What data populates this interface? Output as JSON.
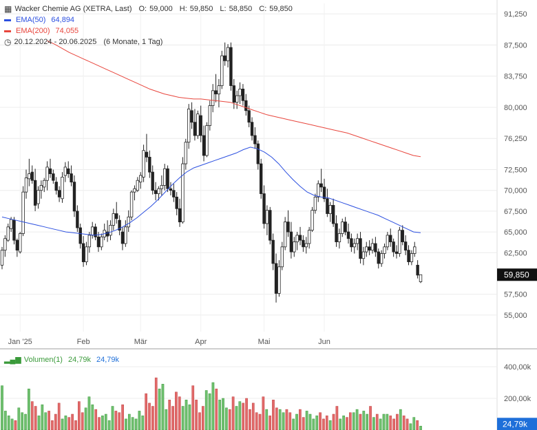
{
  "header": {
    "title": "Wacker Chemie AG (XETRA, Last)",
    "ohlc": {
      "o_label": "O:",
      "o": "59,000",
      "h_label": "H:",
      "h": "59,850",
      "l_label": "L:",
      "l": "58,850",
      "c_label": "C:",
      "c": "59,850"
    },
    "ema50_label": "EMA(50)",
    "ema50_value": "64,894",
    "ema200_label": "EMA(200)",
    "ema200_value": "74,055",
    "range": "20.12.2024 - 20.06.2025",
    "period": "(6 Monate, 1 Tag)",
    "volume_label": "Volumen(1)",
    "volume_value_1": "24,79k",
    "volume_value_2": "24,79k"
  },
  "colors": {
    "ema50": "#2b4fe0",
    "ema200": "#e8453c",
    "up": "#6fc06f",
    "down": "#e26a6a",
    "candle": "#222222",
    "price_tag": "#111111",
    "volume_tag": "#1e6fd9",
    "volume_legend": "#3a9a3a"
  },
  "chart_data": {
    "type": "candlestick",
    "y_ticks": [
      "91,250",
      "87,500",
      "83,750",
      "80,000",
      "76,250",
      "72,500",
      "70,000",
      "67,500",
      "65,000",
      "62,500",
      "57,500",
      "55,000"
    ],
    "x_ticks": [
      "Jan '25",
      "Feb",
      "Mär",
      "Apr",
      "Mai",
      "Jun"
    ],
    "last_price": "59,850",
    "volume_ticks": [
      "400,00k",
      "200,00k"
    ],
    "volume_last": "24,79k",
    "ylim": [
      53.0,
      92.5
    ],
    "candles": [
      [
        61.0,
        63.2,
        60.5,
        62.8
      ],
      [
        62.8,
        64.6,
        62.0,
        64.2
      ],
      [
        64.0,
        66.0,
        63.8,
        65.6
      ],
      [
        65.4,
        66.8,
        65.0,
        66.5
      ],
      [
        66.4,
        66.8,
        63.5,
        64.0
      ],
      [
        64.0,
        64.2,
        62.0,
        62.8
      ],
      [
        62.6,
        65.0,
        62.4,
        64.8
      ],
      [
        64.8,
        70.5,
        64.5,
        69.8
      ],
      [
        69.8,
        72.5,
        69.0,
        71.5
      ],
      [
        71.4,
        73.8,
        70.5,
        72.0
      ],
      [
        72.2,
        73.0,
        70.8,
        71.2
      ],
      [
        71.2,
        72.6,
        67.5,
        68.2
      ],
      [
        68.4,
        70.5,
        67.8,
        70.0
      ],
      [
        70.0,
        71.2,
        69.0,
        70.6
      ],
      [
        70.4,
        71.5,
        69.8,
        71.2
      ],
      [
        71.2,
        73.5,
        70.0,
        72.8
      ],
      [
        72.6,
        73.8,
        71.5,
        72.0
      ],
      [
        72.0,
        72.5,
        70.8,
        71.2
      ],
      [
        71.0,
        71.6,
        69.5,
        70.0
      ],
      [
        70.0,
        70.5,
        68.6,
        69.2
      ],
      [
        69.0,
        72.2,
        68.5,
        71.6
      ],
      [
        71.8,
        73.4,
        71.0,
        72.8
      ],
      [
        72.6,
        73.5,
        71.5,
        72.0
      ],
      [
        72.0,
        73.0,
        70.5,
        71.0
      ],
      [
        71.0,
        71.8,
        66.8,
        67.5
      ],
      [
        67.5,
        68.2,
        65.0,
        65.5
      ],
      [
        65.5,
        66.0,
        63.0,
        63.6
      ],
      [
        63.6,
        64.5,
        60.8,
        61.4
      ],
      [
        61.4,
        63.8,
        61.0,
        63.2
      ],
      [
        63.2,
        65.0,
        62.5,
        64.6
      ],
      [
        64.6,
        66.2,
        64.2,
        65.6
      ],
      [
        65.6,
        66.0,
        64.0,
        64.4
      ],
      [
        64.4,
        65.0,
        62.6,
        63.2
      ],
      [
        63.2,
        64.8,
        62.8,
        64.4
      ],
      [
        64.4,
        66.0,
        64.0,
        65.2
      ],
      [
        65.0,
        66.4,
        63.8,
        64.5
      ],
      [
        64.6,
        66.4,
        64.0,
        65.8
      ],
      [
        65.8,
        67.8,
        65.2,
        67.2
      ],
      [
        67.2,
        68.6,
        66.0,
        66.6
      ],
      [
        66.4,
        67.0,
        64.6,
        65.2
      ],
      [
        65.0,
        65.6,
        62.8,
        63.6
      ],
      [
        63.6,
        66.4,
        63.2,
        65.6
      ],
      [
        65.6,
        67.6,
        65.0,
        66.8
      ],
      [
        66.8,
        70.0,
        66.4,
        69.8
      ],
      [
        69.8,
        70.6,
        68.8,
        70.2
      ],
      [
        70.0,
        71.6,
        69.8,
        71.2
      ],
      [
        71.0,
        72.2,
        70.2,
        71.8
      ],
      [
        71.6,
        75.5,
        71.0,
        74.8
      ],
      [
        74.6,
        76.8,
        73.4,
        74.0
      ],
      [
        74.0,
        74.8,
        71.5,
        72.2
      ],
      [
        72.2,
        73.0,
        69.5,
        70.0
      ],
      [
        70.0,
        71.0,
        68.8,
        69.6
      ],
      [
        69.6,
        70.5,
        68.8,
        70.2
      ],
      [
        70.2,
        71.8,
        69.4,
        70.6
      ],
      [
        70.6,
        73.2,
        70.0,
        72.6
      ],
      [
        72.6,
        73.0,
        69.8,
        70.2
      ],
      [
        70.2,
        71.0,
        69.4,
        70.0
      ],
      [
        70.0,
        70.8,
        68.6,
        69.2
      ],
      [
        69.2,
        69.8,
        67.0,
        67.8
      ],
      [
        67.8,
        69.0,
        65.6,
        66.2
      ],
      [
        66.2,
        74.0,
        66.0,
        73.2
      ],
      [
        73.2,
        76.2,
        72.5,
        75.8
      ],
      [
        75.8,
        80.4,
        75.0,
        79.8
      ],
      [
        79.6,
        80.6,
        77.4,
        78.2
      ],
      [
        78.2,
        79.8,
        76.0,
        76.6
      ],
      [
        76.6,
        79.6,
        76.2,
        79.2
      ],
      [
        79.0,
        80.2,
        75.8,
        76.6
      ],
      [
        76.6,
        77.8,
        73.5,
        74.2
      ],
      [
        74.2,
        78.2,
        74.0,
        77.8
      ],
      [
        77.8,
        80.8,
        77.2,
        80.2
      ],
      [
        80.2,
        82.8,
        79.4,
        82.0
      ],
      [
        82.0,
        84.0,
        80.6,
        81.6
      ],
      [
        81.6,
        83.4,
        80.0,
        82.6
      ],
      [
        82.6,
        86.8,
        82.2,
        86.2
      ],
      [
        86.2,
        87.8,
        85.0,
        85.6
      ],
      [
        85.6,
        87.6,
        84.8,
        87.2
      ],
      [
        87.2,
        87.8,
        82.0,
        82.6
      ],
      [
        82.6,
        83.4,
        79.8,
        80.6
      ],
      [
        80.6,
        82.0,
        79.8,
        81.4
      ],
      [
        81.4,
        83.0,
        80.4,
        82.2
      ],
      [
        82.2,
        82.8,
        80.2,
        80.8
      ],
      [
        80.8,
        81.6,
        79.0,
        79.6
      ],
      [
        79.6,
        80.2,
        77.6,
        78.2
      ],
      [
        78.2,
        78.8,
        76.0,
        76.6
      ],
      [
        76.6,
        77.6,
        75.0,
        75.6
      ],
      [
        75.6,
        76.0,
        72.5,
        73.2
      ],
      [
        73.2,
        73.8,
        69.0,
        69.6
      ],
      [
        69.6,
        70.6,
        65.4,
        66.0
      ],
      [
        66.0,
        68.2,
        64.6,
        67.6
      ],
      [
        67.6,
        68.0,
        63.5,
        64.0
      ],
      [
        64.0,
        64.8,
        60.4,
        61.2
      ],
      [
        61.2,
        62.4,
        56.5,
        57.6
      ],
      [
        57.6,
        61.6,
        57.2,
        60.8
      ],
      [
        60.8,
        63.8,
        60.4,
        63.2
      ],
      [
        63.2,
        66.8,
        62.8,
        66.2
      ],
      [
        66.2,
        67.6,
        64.4,
        65.0
      ],
      [
        65.0,
        66.2,
        61.8,
        62.6
      ],
      [
        62.6,
        64.4,
        62.0,
        63.8
      ],
      [
        63.8,
        65.0,
        62.8,
        64.6
      ],
      [
        64.6,
        65.6,
        63.4,
        64.0
      ],
      [
        64.0,
        64.6,
        62.6,
        63.2
      ],
      [
        63.2,
        64.4,
        62.4,
        63.6
      ],
      [
        63.6,
        65.6,
        63.0,
        65.2
      ],
      [
        65.2,
        68.0,
        65.0,
        67.6
      ],
      [
        67.6,
        69.6,
        67.2,
        69.2
      ],
      [
        69.2,
        71.2,
        68.6,
        70.8
      ],
      [
        70.8,
        72.6,
        69.8,
        70.4
      ],
      [
        70.4,
        71.4,
        68.6,
        69.0
      ],
      [
        69.0,
        70.2,
        66.8,
        67.2
      ],
      [
        67.2,
        68.6,
        66.2,
        68.2
      ],
      [
        68.2,
        69.0,
        65.6,
        66.0
      ],
      [
        66.0,
        67.0,
        63.2,
        63.8
      ],
      [
        63.8,
        65.4,
        63.0,
        64.8
      ],
      [
        64.8,
        66.6,
        64.4,
        66.2
      ],
      [
        66.2,
        66.8,
        64.6,
        65.0
      ],
      [
        65.0,
        66.0,
        63.6,
        64.2
      ],
      [
        64.2,
        64.8,
        62.6,
        63.2
      ],
      [
        63.2,
        64.2,
        62.4,
        63.6
      ],
      [
        63.6,
        64.8,
        62.8,
        64.2
      ],
      [
        64.2,
        65.0,
        61.2,
        61.8
      ],
      [
        61.8,
        63.2,
        61.0,
        62.6
      ],
      [
        62.6,
        63.8,
        62.0,
        63.2
      ],
      [
        63.2,
        64.0,
        62.2,
        62.8
      ],
      [
        62.8,
        64.2,
        62.4,
        63.6
      ],
      [
        63.6,
        64.4,
        62.0,
        62.6
      ],
      [
        62.6,
        63.0,
        60.6,
        61.2
      ],
      [
        61.2,
        62.8,
        60.8,
        62.4
      ],
      [
        62.4,
        63.6,
        61.8,
        63.2
      ],
      [
        63.2,
        65.0,
        62.8,
        64.6
      ],
      [
        64.6,
        65.4,
        63.2,
        63.8
      ],
      [
        63.8,
        64.2,
        62.0,
        62.6
      ],
      [
        62.6,
        63.4,
        61.8,
        62.4
      ],
      [
        62.4,
        65.6,
        62.0,
        65.2
      ],
      [
        65.2,
        65.8,
        63.4,
        63.8
      ],
      [
        63.8,
        64.6,
        62.2,
        62.8
      ],
      [
        62.8,
        63.4,
        61.0,
        61.4
      ],
      [
        61.4,
        62.8,
        61.0,
        62.4
      ],
      [
        62.4,
        63.8,
        62.0,
        63.2
      ],
      [
        61.0,
        61.6,
        59.4,
        59.8
      ],
      [
        59.0,
        59.85,
        58.85,
        59.85
      ]
    ],
    "ema50": [
      66.8,
      66.6,
      66.4,
      66.2,
      66.0,
      65.8,
      65.6,
      65.4,
      65.2,
      65.0,
      64.9,
      64.8,
      64.7,
      64.6,
      64.7,
      64.9,
      65.2,
      65.6,
      66.1,
      66.7,
      67.4,
      68.1,
      68.9,
      69.8,
      70.7,
      71.5,
      72.2,
      72.7,
      73.0,
      73.3,
      73.6,
      73.9,
      74.2,
      74.5,
      74.9,
      75.2,
      75.0,
      74.6,
      74.0,
      73.2,
      72.2,
      71.3,
      70.5,
      69.8,
      69.4,
      69.2,
      69.1,
      68.8,
      68.5,
      68.2,
      67.9,
      67.6,
      67.3,
      67.0,
      66.6,
      66.2,
      65.8,
      65.4,
      65.0,
      64.9
    ],
    "ema200": [
      88.0,
      87.6,
      87.1,
      86.6,
      86.2,
      85.8,
      85.4,
      85.0,
      84.6,
      84.2,
      83.8,
      83.4,
      83.0,
      82.6,
      82.2,
      81.9,
      81.6,
      81.4,
      81.2,
      81.1,
      81.0,
      81.0,
      80.9,
      80.8,
      80.7,
      80.6,
      80.3,
      80.0,
      79.7,
      79.4,
      79.1,
      78.9,
      78.7,
      78.5,
      78.3,
      78.1,
      77.9,
      77.7,
      77.5,
      77.3,
      77.1,
      76.9,
      76.6,
      76.3,
      76.0,
      75.7,
      75.4,
      75.1,
      74.8,
      74.5,
      74.2,
      74.055
    ],
    "volumes": [
      280,
      120,
      90,
      70,
      60,
      140,
      110,
      100,
      260,
      180,
      150,
      90,
      160,
      110,
      120,
      60,
      100,
      170,
      70,
      90,
      80,
      100,
      60,
      180,
      110,
      140,
      210,
      160,
      130,
      80,
      90,
      100,
      60,
      150,
      120,
      110,
      160,
      70,
      100,
      80,
      70,
      120,
      90,
      230,
      170,
      150,
      330,
      260,
      290,
      130,
      190,
      150,
      240,
      210,
      150,
      190,
      160,
      280,
      190,
      110,
      150,
      250,
      230,
      300,
      260,
      190,
      200,
      140,
      130,
      210,
      150,
      180,
      170,
      200,
      130,
      170,
      110,
      100,
      210,
      130,
      90,
      190,
      140,
      130,
      110,
      130,
      110,
      70,
      100,
      130,
      80,
      120,
      100,
      70,
      90,
      110,
      70,
      90,
      60,
      100,
      150,
      70,
      90,
      80,
      110,
      110,
      130,
      100,
      120,
      100,
      150,
      80,
      100,
      70,
      100,
      100,
      90,
      70,
      100,
      130,
      90,
      70,
      40,
      80,
      60,
      24.79
    ],
    "volume_ylim": [
      0,
      500
    ]
  }
}
